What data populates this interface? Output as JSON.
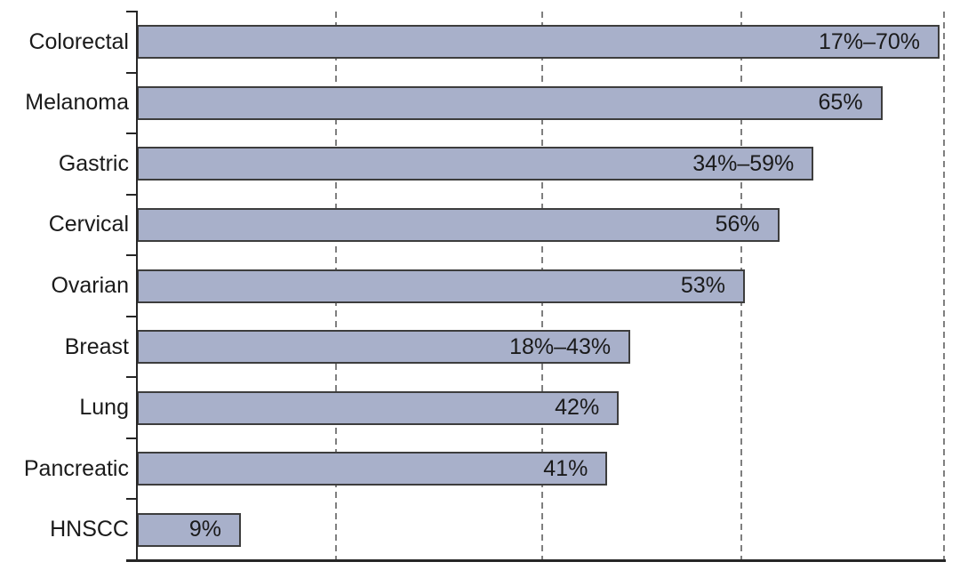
{
  "chart_data": {
    "type": "bar",
    "orientation": "horizontal",
    "title": "",
    "xlabel": "",
    "ylabel": "",
    "categories": [
      "Colorectal",
      "Melanoma",
      "Gastric",
      "Cervical",
      "Ovarian",
      "Breast",
      "Lung",
      "Pancreatic",
      "HNSCC"
    ],
    "values": [
      70,
      65,
      59,
      56,
      53,
      43,
      42,
      41,
      9
    ],
    "bar_labels": [
      "17%–70%",
      "65%",
      "34%–59%",
      "56%",
      "53%",
      "18%–43%",
      "42%",
      "41%",
      "9%"
    ],
    "ranges": [
      {
        "min": 17,
        "max": 70
      },
      {
        "min": 65,
        "max": 65
      },
      {
        "min": 34,
        "max": 59
      },
      {
        "min": 56,
        "max": 56
      },
      {
        "min": 53,
        "max": 53
      },
      {
        "min": 18,
        "max": 43
      },
      {
        "min": 42,
        "max": 42
      },
      {
        "min": 41,
        "max": 41
      },
      {
        "min": 9,
        "max": 9
      }
    ],
    "xlim": [
      0,
      70.4
    ],
    "gridlines_at_pct": [
      17.3,
      35.3,
      52.7,
      70.4
    ],
    "grid_style": "dashed-vertical",
    "legend": "none",
    "tick_marks": "y-axis category boundaries",
    "colors": {
      "bar_fill": "#a8b0ca",
      "bar_border": "#3d3d3d",
      "axis": "#262626",
      "gridline": "#7f7f7f",
      "text": "#1a1a1a",
      "background": "#ffffff"
    }
  }
}
